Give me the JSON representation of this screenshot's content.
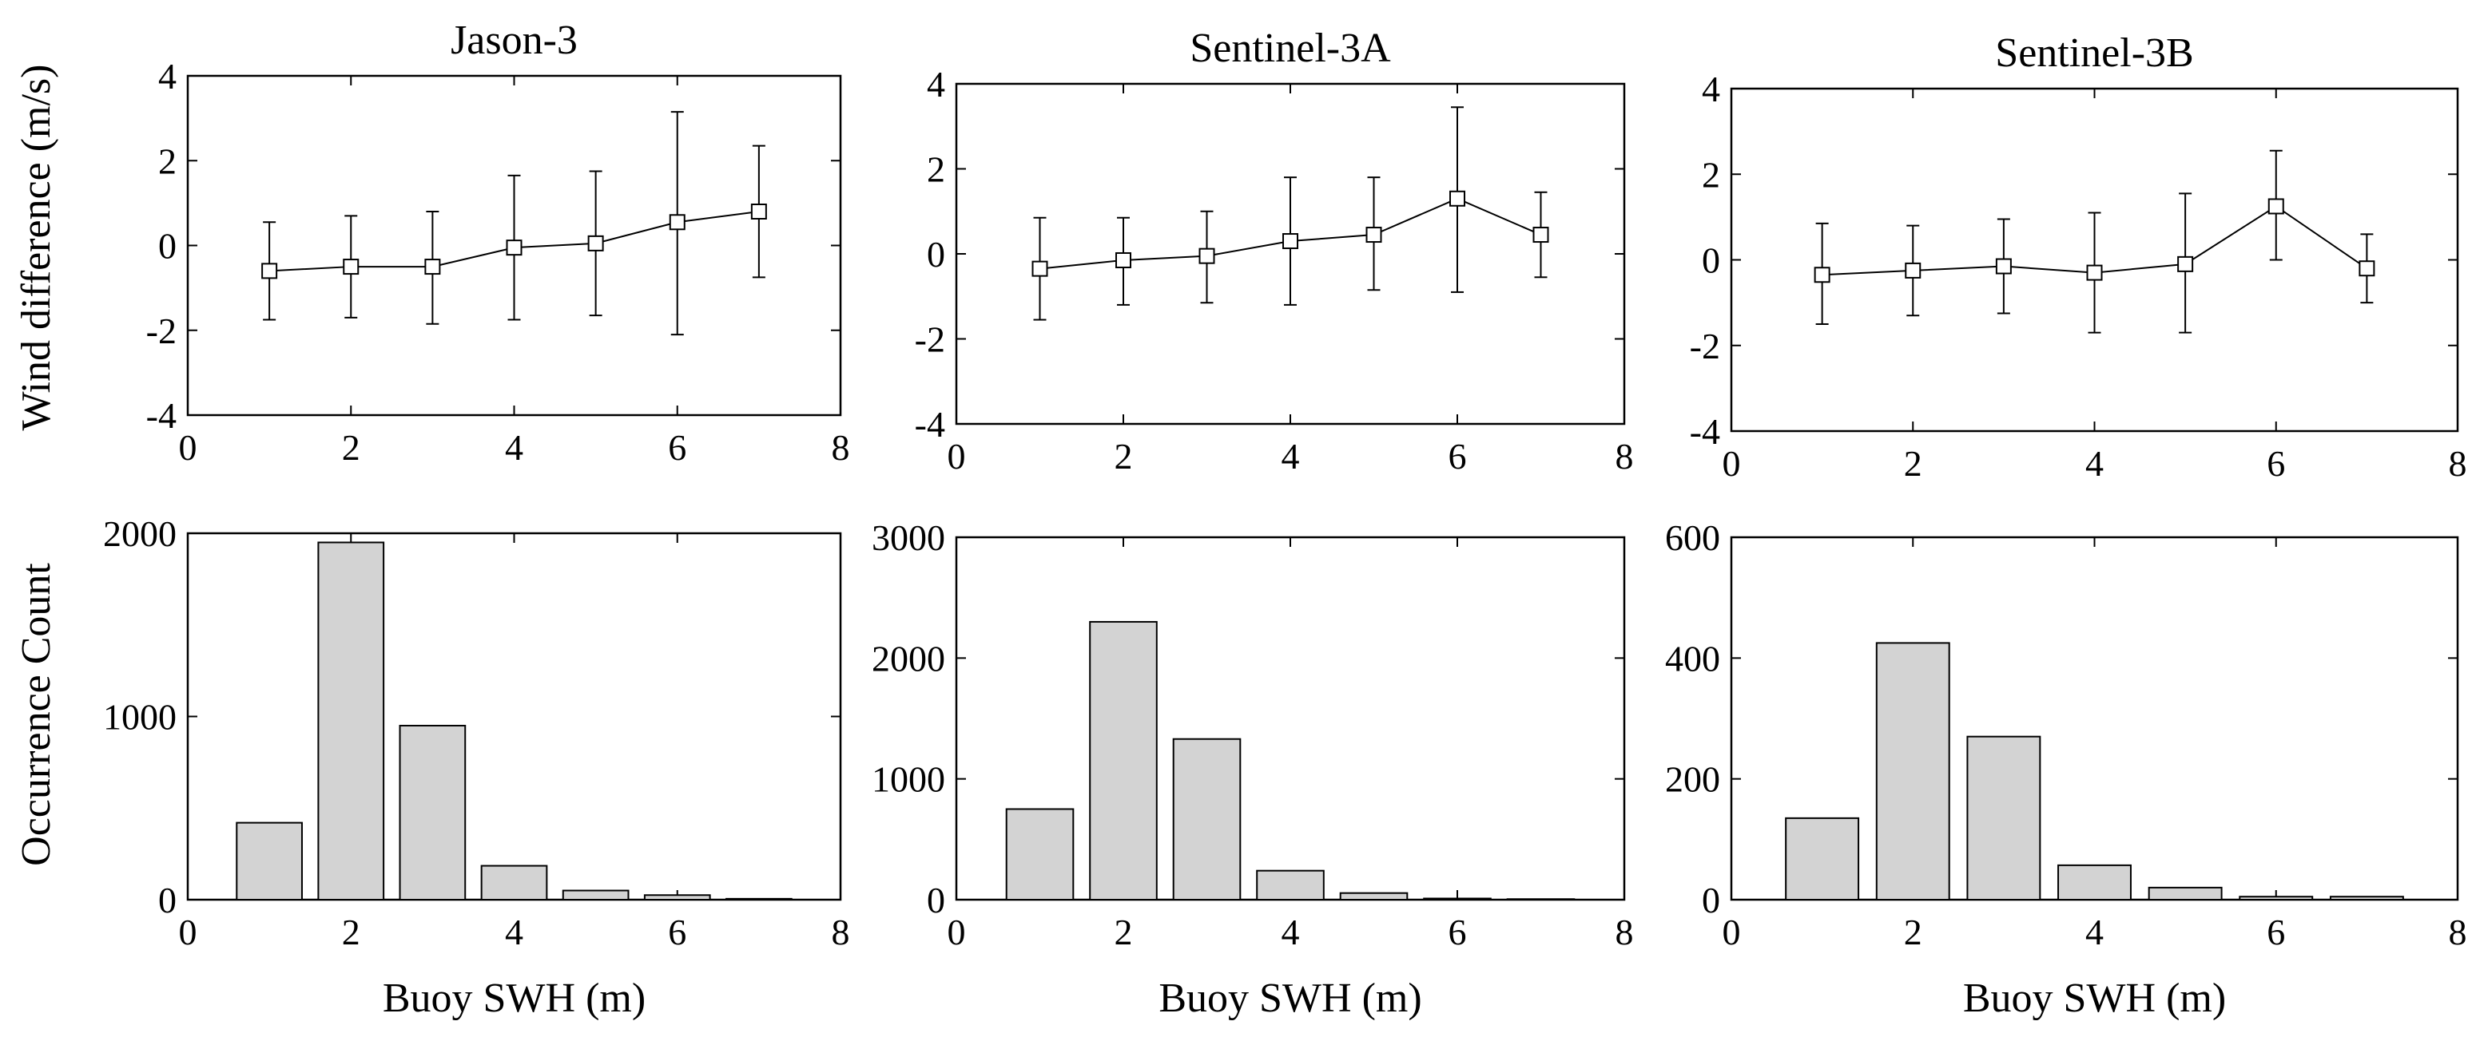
{
  "figure": {
    "row_labels": {
      "top": "Wind difference (m/s)",
      "bottom": "Occurrence Count"
    },
    "x_label": "Buoy SWH (m)"
  },
  "chart_data": [
    {
      "id": "jason3-wind",
      "type": "line",
      "title": "Jason-3",
      "xlabel": "",
      "ylabel": "Wind difference (m/s)",
      "xlim": [
        0,
        8
      ],
      "ylim": [
        -4,
        4
      ],
      "xticks": [
        "0",
        "2",
        "4",
        "6",
        "8"
      ],
      "yticks": [
        "-4",
        "-2",
        "0",
        "2",
        "4"
      ],
      "x": [
        1,
        2,
        3,
        4,
        5,
        6,
        7
      ],
      "y": [
        -0.6,
        -0.5,
        -0.5,
        -0.05,
        0.05,
        0.55,
        0.8
      ],
      "err_low": [
        -1.75,
        -1.7,
        -1.85,
        -1.75,
        -1.65,
        -2.1,
        -0.75
      ],
      "err_high": [
        0.55,
        0.7,
        0.8,
        1.65,
        1.75,
        3.15,
        2.35
      ],
      "marker": "square"
    },
    {
      "id": "s3a-wind",
      "type": "line",
      "title": "Sentinel-3A",
      "xlabel": "",
      "ylabel": "",
      "xlim": [
        0,
        8
      ],
      "ylim": [
        -4,
        4
      ],
      "xticks": [
        "0",
        "2",
        "4",
        "6",
        "8"
      ],
      "yticks": [
        "-4",
        "-2",
        "0",
        "2",
        "4"
      ],
      "x": [
        1,
        2,
        3,
        4,
        5,
        6,
        7
      ],
      "y": [
        -0.35,
        -0.15,
        -0.05,
        0.3,
        0.45,
        1.3,
        0.45
      ],
      "err_low": [
        -1.55,
        -1.2,
        -1.15,
        -1.2,
        -0.85,
        -0.9,
        -0.55
      ],
      "err_high": [
        0.85,
        0.85,
        1.0,
        1.8,
        1.8,
        3.45,
        1.45
      ],
      "marker": "square"
    },
    {
      "id": "s3b-wind",
      "type": "line",
      "title": "Sentinel-3B",
      "xlabel": "",
      "ylabel": "",
      "xlim": [
        0,
        8
      ],
      "ylim": [
        -4,
        4
      ],
      "xticks": [
        "0",
        "2",
        "4",
        "6",
        "8"
      ],
      "yticks": [
        "-4",
        "-2",
        "0",
        "2",
        "4"
      ],
      "x": [
        1,
        2,
        3,
        4,
        5,
        6,
        7
      ],
      "y": [
        -0.35,
        -0.25,
        -0.15,
        -0.3,
        -0.1,
        1.25,
        -0.2
      ],
      "err_low": [
        -1.5,
        -1.3,
        -1.25,
        -1.7,
        -1.7,
        0.0,
        -1.0
      ],
      "err_high": [
        0.85,
        0.8,
        0.95,
        1.1,
        1.55,
        2.55,
        0.6
      ],
      "marker": "square"
    },
    {
      "id": "jason3-count",
      "type": "bar",
      "title": "",
      "xlabel": "Buoy SWH (m)",
      "ylabel": "Occurrence Count",
      "xlim": [
        0,
        8
      ],
      "ylim": [
        0,
        2000
      ],
      "xticks": [
        "0",
        "2",
        "4",
        "6",
        "8"
      ],
      "yticks": [
        "0",
        "1000",
        "2000"
      ],
      "x": [
        1,
        2,
        3,
        4,
        5,
        6,
        7
      ],
      "values": [
        420,
        1950,
        950,
        185,
        50,
        25,
        5
      ]
    },
    {
      "id": "s3a-count",
      "type": "bar",
      "title": "",
      "xlabel": "Buoy SWH (m)",
      "ylabel": "",
      "xlim": [
        0,
        8
      ],
      "ylim": [
        0,
        3000
      ],
      "xticks": [
        "0",
        "2",
        "4",
        "6",
        "8"
      ],
      "yticks": [
        "0",
        "1000",
        "2000",
        "3000"
      ],
      "x": [
        1,
        2,
        3,
        4,
        5,
        6,
        7
      ],
      "values": [
        750,
        2300,
        1330,
        240,
        55,
        10,
        5
      ]
    },
    {
      "id": "s3b-count",
      "type": "bar",
      "title": "",
      "xlabel": "Buoy SWH (m)",
      "ylabel": "",
      "xlim": [
        0,
        8
      ],
      "ylim": [
        0,
        600
      ],
      "xticks": [
        "0",
        "2",
        "4",
        "6",
        "8"
      ],
      "yticks": [
        "0",
        "200",
        "400",
        "600"
      ],
      "x": [
        1,
        2,
        3,
        4,
        5,
        6,
        7
      ],
      "values": [
        135,
        425,
        270,
        57,
        20,
        5,
        5
      ]
    }
  ],
  "style": {
    "bar_fill": "#d3d3d3",
    "ink": "#000000",
    "background": "#ffffff"
  }
}
